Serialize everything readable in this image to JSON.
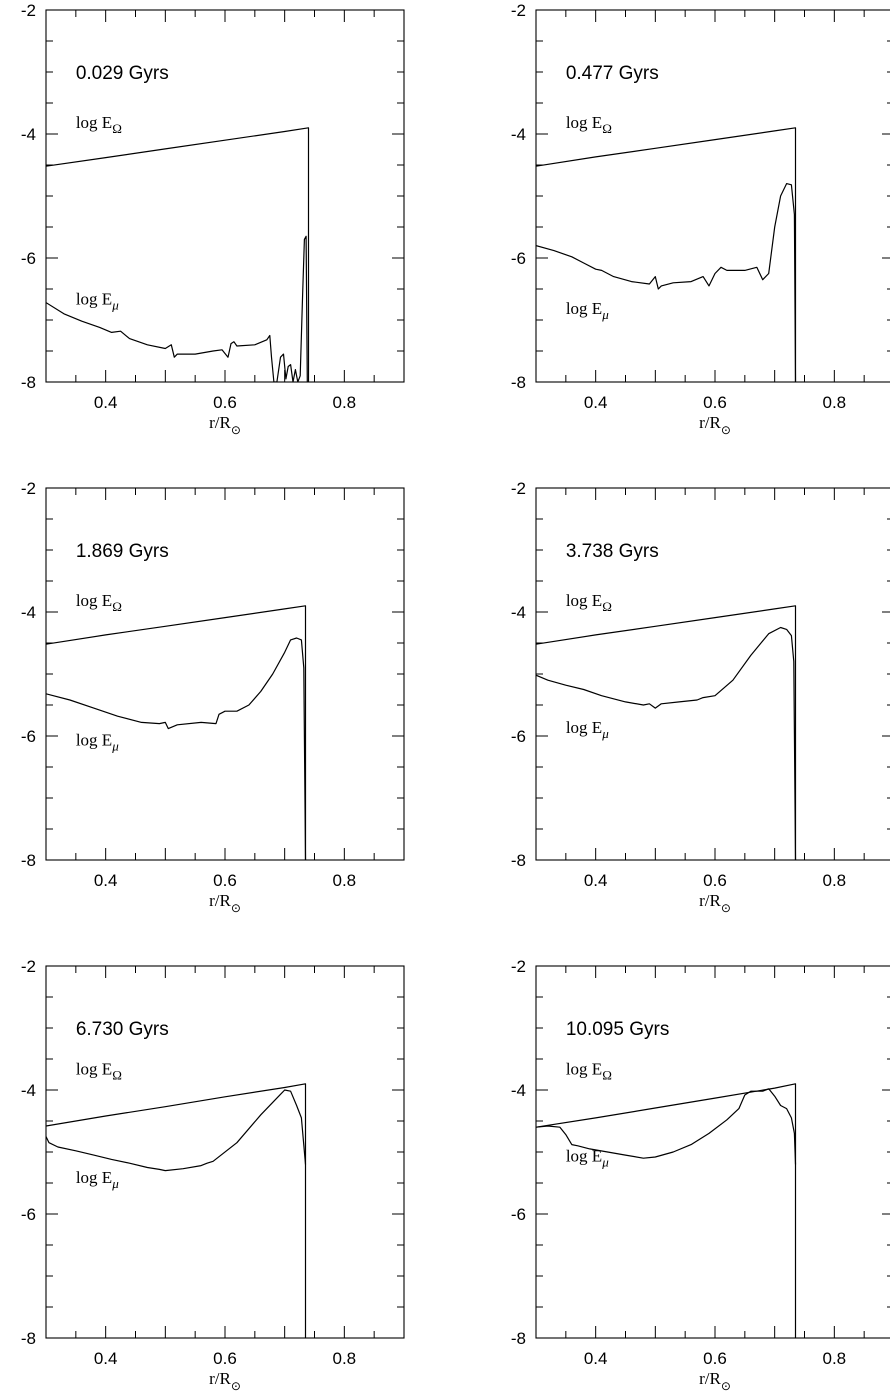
{
  "chart_data": [
    {
      "type": "line",
      "title": "0.029 Gyrs",
      "xlabel": "r/R",
      "xlabel_subscript": "⊙",
      "xlim": [
        0.3,
        0.9
      ],
      "ylim": [
        -8,
        -2
      ],
      "xticks": [
        "0.4",
        "0.6",
        "0.8"
      ],
      "yticks": [
        "-8",
        "-6",
        "-4",
        "-2"
      ],
      "grid": false,
      "series": [
        {
          "name": "log EΩ",
          "label_main": "log E",
          "label_sub": "Ω",
          "x": [
            0.3,
            0.4,
            0.5,
            0.6,
            0.7,
            0.74,
            0.74
          ],
          "y": [
            -4.52,
            -4.38,
            -4.24,
            -4.1,
            -3.96,
            -3.9,
            -8.0
          ]
        },
        {
          "name": "log Eμ",
          "label_main": "log E",
          "label_sub": "μ",
          "x": [
            0.3,
            0.33,
            0.36,
            0.39,
            0.41,
            0.425,
            0.44,
            0.47,
            0.5,
            0.51,
            0.515,
            0.52,
            0.55,
            0.58,
            0.595,
            0.605,
            0.61,
            0.615,
            0.62,
            0.65,
            0.67,
            0.675,
            0.678,
            0.682,
            0.687,
            0.693,
            0.698,
            0.702,
            0.706,
            0.71,
            0.714,
            0.718,
            0.722,
            0.726,
            0.73,
            0.733,
            0.736,
            0.738,
            0.74
          ],
          "y": [
            -6.72,
            -6.9,
            -7.02,
            -7.12,
            -7.2,
            -7.18,
            -7.3,
            -7.4,
            -7.46,
            -7.4,
            -7.6,
            -7.55,
            -7.55,
            -7.5,
            -7.48,
            -7.6,
            -7.38,
            -7.35,
            -7.42,
            -7.4,
            -7.32,
            -7.25,
            -7.6,
            -8.0,
            -8.0,
            -7.6,
            -7.55,
            -7.95,
            -7.75,
            -7.72,
            -8.0,
            -7.8,
            -8.0,
            -7.9,
            -6.6,
            -5.7,
            -5.65,
            -8.0,
            -8.0
          ]
        }
      ]
    },
    {
      "type": "line",
      "title": "0.477 Gyrs",
      "xlabel": "r/R",
      "xlabel_subscript": "⊙",
      "xlim": [
        0.3,
        0.9
      ],
      "ylim": [
        -8,
        -2
      ],
      "xticks": [
        "0.4",
        "0.6",
        "0.8"
      ],
      "yticks": [
        "-8",
        "-6",
        "-4",
        "-2"
      ],
      "grid": false,
      "series": [
        {
          "name": "log EΩ",
          "label_main": "log E",
          "label_sub": "Ω",
          "x": [
            0.3,
            0.4,
            0.5,
            0.6,
            0.7,
            0.735,
            0.735
          ],
          "y": [
            -4.52,
            -4.37,
            -4.23,
            -4.09,
            -3.95,
            -3.9,
            -8.0
          ]
        },
        {
          "name": "log Eμ",
          "label_main": "log E",
          "label_sub": "μ",
          "x": [
            0.3,
            0.33,
            0.36,
            0.38,
            0.4,
            0.41,
            0.43,
            0.46,
            0.49,
            0.5,
            0.505,
            0.51,
            0.53,
            0.56,
            0.58,
            0.59,
            0.6,
            0.61,
            0.62,
            0.65,
            0.67,
            0.68,
            0.69,
            0.7,
            0.71,
            0.72,
            0.728,
            0.733,
            0.735
          ],
          "y": [
            -5.8,
            -5.88,
            -5.98,
            -6.08,
            -6.18,
            -6.2,
            -6.3,
            -6.38,
            -6.42,
            -6.3,
            -6.5,
            -6.45,
            -6.4,
            -6.38,
            -6.3,
            -6.45,
            -6.25,
            -6.15,
            -6.2,
            -6.2,
            -6.15,
            -6.35,
            -6.25,
            -5.5,
            -5.0,
            -4.8,
            -4.82,
            -5.3,
            -8.0
          ]
        }
      ]
    },
    {
      "type": "line",
      "title": "1.869 Gyrs",
      "xlabel": "r/R",
      "xlabel_subscript": "⊙",
      "xlim": [
        0.3,
        0.9
      ],
      "ylim": [
        -8,
        -2
      ],
      "xticks": [
        "0.4",
        "0.6",
        "0.8"
      ],
      "yticks": [
        "-8",
        "-6",
        "-4",
        "-2"
      ],
      "grid": false,
      "series": [
        {
          "name": "log EΩ",
          "label_main": "log E",
          "label_sub": "Ω",
          "x": [
            0.3,
            0.4,
            0.5,
            0.6,
            0.7,
            0.735,
            0.735
          ],
          "y": [
            -4.52,
            -4.37,
            -4.23,
            -4.09,
            -3.95,
            -3.9,
            -8.0
          ]
        },
        {
          "name": "log Eμ",
          "label_main": "log E",
          "label_sub": "μ",
          "x": [
            0.3,
            0.34,
            0.38,
            0.42,
            0.46,
            0.49,
            0.5,
            0.505,
            0.52,
            0.56,
            0.585,
            0.59,
            0.6,
            0.62,
            0.64,
            0.66,
            0.68,
            0.7,
            0.71,
            0.72,
            0.728,
            0.732,
            0.735
          ],
          "y": [
            -5.32,
            -5.42,
            -5.55,
            -5.68,
            -5.78,
            -5.8,
            -5.78,
            -5.88,
            -5.82,
            -5.78,
            -5.8,
            -5.65,
            -5.6,
            -5.6,
            -5.5,
            -5.28,
            -5.0,
            -4.65,
            -4.45,
            -4.42,
            -4.45,
            -4.9,
            -8.0
          ]
        }
      ]
    },
    {
      "type": "line",
      "title": "3.738 Gyrs",
      "xlabel": "r/R",
      "xlabel_subscript": "⊙",
      "xlim": [
        0.3,
        0.9
      ],
      "ylim": [
        -8,
        -2
      ],
      "xticks": [
        "0.4",
        "0.6",
        "0.8"
      ],
      "yticks": [
        "-8",
        "-6",
        "-4",
        "-2"
      ],
      "grid": false,
      "series": [
        {
          "name": "log EΩ",
          "label_main": "log E",
          "label_sub": "Ω",
          "x": [
            0.3,
            0.4,
            0.5,
            0.6,
            0.7,
            0.735,
            0.735
          ],
          "y": [
            -4.52,
            -4.37,
            -4.23,
            -4.09,
            -3.95,
            -3.9,
            -8.0
          ]
        },
        {
          "name": "log Eμ",
          "label_main": "log E",
          "label_sub": "μ",
          "x": [
            0.3,
            0.32,
            0.35,
            0.38,
            0.41,
            0.45,
            0.48,
            0.49,
            0.5,
            0.51,
            0.54,
            0.57,
            0.58,
            0.6,
            0.63,
            0.66,
            0.69,
            0.71,
            0.72,
            0.728,
            0.732,
            0.735
          ],
          "y": [
            -5.02,
            -5.1,
            -5.18,
            -5.25,
            -5.35,
            -5.45,
            -5.5,
            -5.48,
            -5.55,
            -5.48,
            -5.45,
            -5.42,
            -5.38,
            -5.35,
            -5.1,
            -4.7,
            -4.35,
            -4.25,
            -4.28,
            -4.38,
            -4.8,
            -8.0
          ]
        }
      ]
    },
    {
      "type": "line",
      "title": "6.730 Gyrs",
      "xlabel": "r/R",
      "xlabel_subscript": "⊙",
      "xlim": [
        0.3,
        0.9
      ],
      "ylim": [
        -8,
        -2
      ],
      "xticks": [
        "0.4",
        "0.6",
        "0.8"
      ],
      "yticks": [
        "-8",
        "-6",
        "-4",
        "-2"
      ],
      "grid": false,
      "series": [
        {
          "name": "log EΩ",
          "label_main": "log E",
          "label_sub": "Ω",
          "x": [
            0.3,
            0.4,
            0.5,
            0.6,
            0.7,
            0.735,
            0.735
          ],
          "y": [
            -4.58,
            -4.42,
            -4.27,
            -4.11,
            -3.96,
            -3.9,
            -8.0
          ]
        },
        {
          "name": "log Eμ",
          "label_main": "log E",
          "label_sub": "μ",
          "x": [
            0.3,
            0.305,
            0.32,
            0.35,
            0.38,
            0.41,
            0.44,
            0.47,
            0.49,
            0.5,
            0.53,
            0.56,
            0.57,
            0.58,
            0.62,
            0.66,
            0.69,
            0.7,
            0.71,
            0.72,
            0.728,
            0.735
          ],
          "y": [
            -4.75,
            -4.85,
            -4.92,
            -4.98,
            -5.05,
            -5.12,
            -5.18,
            -5.25,
            -5.28,
            -5.3,
            -5.27,
            -5.22,
            -5.18,
            -5.15,
            -4.85,
            -4.4,
            -4.1,
            -4.0,
            -4.02,
            -4.25,
            -4.45,
            -5.2
          ]
        }
      ]
    },
    {
      "type": "line",
      "title": "10.095 Gyrs",
      "xlabel": "r/R",
      "xlabel_subscript": "⊙",
      "xlim": [
        0.3,
        0.9
      ],
      "ylim": [
        -8,
        -2
      ],
      "xticks": [
        "0.4",
        "0.6",
        "0.8"
      ],
      "yticks": [
        "-8",
        "-6",
        "-4",
        "-2"
      ],
      "grid": false,
      "series": [
        {
          "name": "log EΩ",
          "label_main": "log E",
          "label_sub": "Ω",
          "x": [
            0.3,
            0.4,
            0.5,
            0.6,
            0.7,
            0.735,
            0.735
          ],
          "y": [
            -4.6,
            -4.45,
            -4.29,
            -4.13,
            -3.97,
            -3.9,
            -8.0
          ]
        },
        {
          "name": "log Eμ",
          "label_main": "log E",
          "label_sub": "μ",
          "x": [
            0.3,
            0.32,
            0.34,
            0.35,
            0.36,
            0.37,
            0.39,
            0.42,
            0.45,
            0.48,
            0.5,
            0.53,
            0.56,
            0.59,
            0.62,
            0.64,
            0.65,
            0.66,
            0.67,
            0.68,
            0.69,
            0.7,
            0.71,
            0.72,
            0.728,
            0.733,
            0.735
          ],
          "y": [
            -4.6,
            -4.58,
            -4.6,
            -4.72,
            -4.88,
            -4.9,
            -4.95,
            -5.0,
            -5.05,
            -5.1,
            -5.08,
            -5.0,
            -4.88,
            -4.7,
            -4.48,
            -4.3,
            -4.08,
            -4.02,
            -4.02,
            -4.02,
            -3.98,
            -4.1,
            -4.25,
            -4.3,
            -4.45,
            -4.7,
            -5.2
          ]
        }
      ]
    }
  ]
}
